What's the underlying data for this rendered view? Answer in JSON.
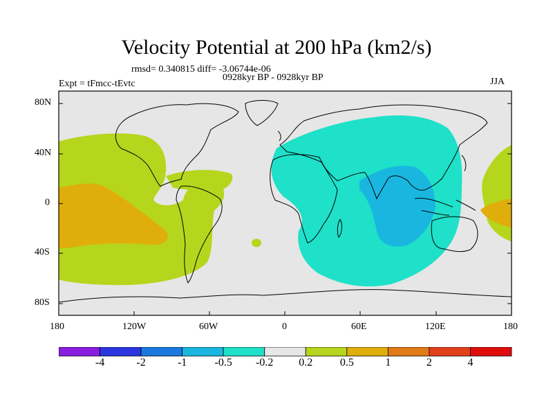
{
  "title": "Velocity Potential at 200 hPa (km2/s)",
  "stats": "rmsd= 0.340815 diff= -3.06744e-06",
  "period": "0928kyr BP - 0928kyr BP",
  "experiment": "Expt = tFmcc-tEvtc",
  "season": "JJA",
  "axes": {
    "x_ticks": [
      "180",
      "120W",
      "60W",
      "0",
      "60E",
      "120E",
      "180"
    ],
    "y_ticks": [
      "80N",
      "40N",
      "0",
      "40S",
      "80S"
    ]
  },
  "colorbar": {
    "levels": [
      "-4",
      "-2",
      "-1",
      "-0.5",
      "-0.2",
      "0.2",
      "0.5",
      "1",
      "2",
      "4"
    ],
    "colors": [
      "#8a1ee0",
      "#2c36e0",
      "#1a78de",
      "#19b7e0",
      "#1fe0c8",
      "#e6e6e6",
      "#b5d61c",
      "#e0ae0a",
      "#e07a16",
      "#e0401a",
      "#e00c0c"
    ]
  },
  "colors": {
    "ocean_neutral": "#e6e6e6",
    "coastline": "#000000",
    "positive_weak": "#b5d61c",
    "positive_mid": "#e0ae0a",
    "negative_weak": "#1fe0c8",
    "negative_mid": "#19b7e0"
  }
}
